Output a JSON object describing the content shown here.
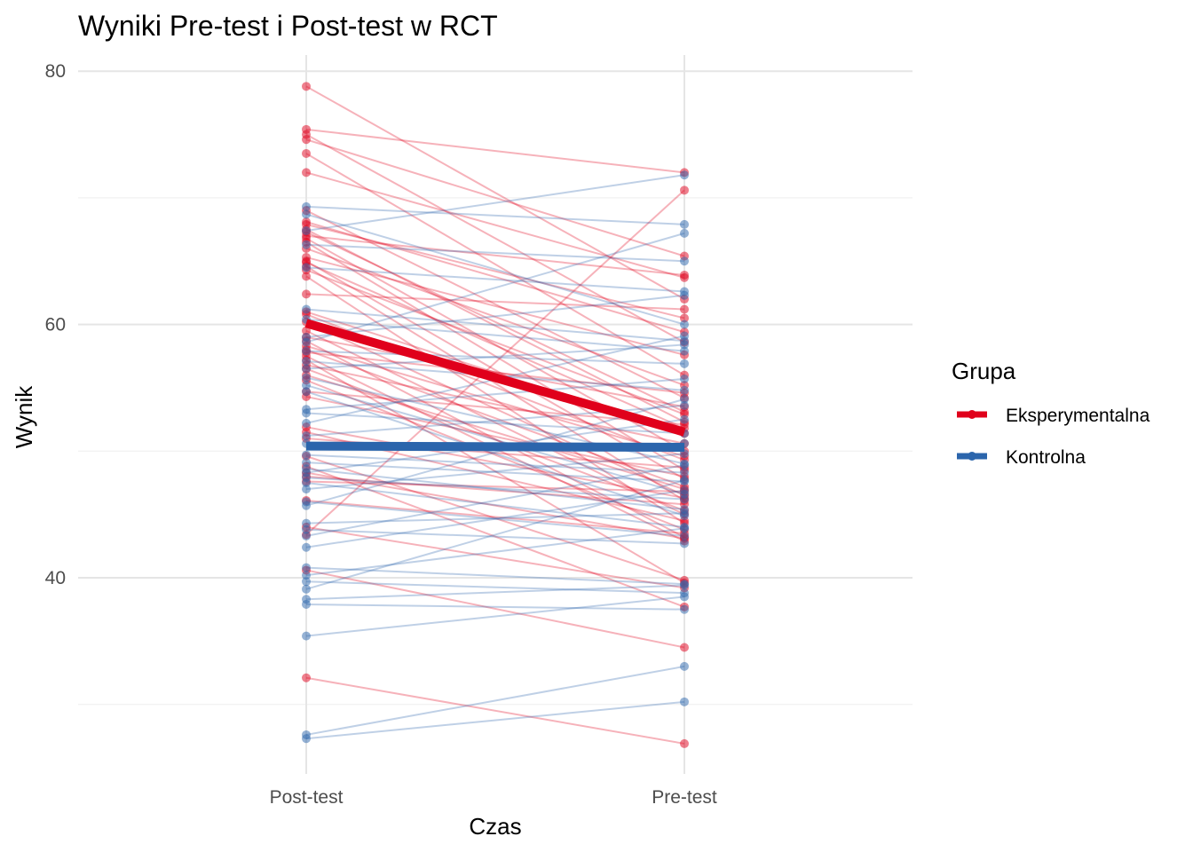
{
  "chart_data": {
    "type": "line",
    "title": "Wyniki Pre-test i Post-test w RCT",
    "xlabel": "Czas",
    "ylabel": "Wynik",
    "categories": [
      "Post-test",
      "Pre-test"
    ],
    "yticks": [
      40,
      60,
      80
    ],
    "ylim": [
      24.5,
      81.5
    ],
    "grid": true,
    "legend": {
      "title": "Grupa",
      "position": "right",
      "entries": [
        {
          "label": "Eksperymentalna",
          "color": "#E0001B"
        },
        {
          "label": "Kontrolna",
          "color": "#2B65AC"
        }
      ]
    },
    "series": [
      {
        "name": "Eksperymentalna",
        "color": "#E0001B",
        "mean": [
          60.1,
          51.5
        ],
        "pairs": [
          [
            78.8,
            62.0
          ],
          [
            75.4,
            72.0
          ],
          [
            75.0,
            58.6
          ],
          [
            74.6,
            65.4
          ],
          [
            73.5,
            56.0
          ],
          [
            72.0,
            63.7
          ],
          [
            69.0,
            54.2
          ],
          [
            68.1,
            59.4
          ],
          [
            67.9,
            60.5
          ],
          [
            67.5,
            52.3
          ],
          [
            67.3,
            53.1
          ],
          [
            66.8,
            50.0
          ],
          [
            66.5,
            48.5
          ],
          [
            66.0,
            55.2
          ],
          [
            65.3,
            57.6
          ],
          [
            65.0,
            47.8
          ],
          [
            64.6,
            46.1
          ],
          [
            64.3,
            52.9
          ],
          [
            63.8,
            44.3
          ],
          [
            62.4,
            61.2
          ],
          [
            61.0,
            51.4
          ],
          [
            60.8,
            49.3
          ],
          [
            60.2,
            46.5
          ],
          [
            59.5,
            45.0
          ],
          [
            59.0,
            53.5
          ],
          [
            58.7,
            43.2
          ],
          [
            58.3,
            49.6
          ],
          [
            58.0,
            47.2
          ],
          [
            57.8,
            54.6
          ],
          [
            57.5,
            42.9
          ],
          [
            57.2,
            39.6
          ],
          [
            56.8,
            50.6
          ],
          [
            56.5,
            45.3
          ],
          [
            56.0,
            47.0
          ],
          [
            55.6,
            43.8
          ],
          [
            54.7,
            52.1
          ],
          [
            54.3,
            48.0
          ],
          [
            51.9,
            46.3
          ],
          [
            51.5,
            44.5
          ],
          [
            51.0,
            48.7
          ],
          [
            49.6,
            39.8
          ],
          [
            48.8,
            37.7
          ],
          [
            48.3,
            43.1
          ],
          [
            48.0,
            45.8
          ],
          [
            47.6,
            46.8
          ],
          [
            46.1,
            43.5
          ],
          [
            44.0,
            39.2
          ],
          [
            43.4,
            70.6
          ],
          [
            40.6,
            34.5
          ],
          [
            32.1,
            26.9
          ],
          [
            67.0,
            63.9
          ],
          [
            64.9,
            51.8
          ]
        ]
      },
      {
        "name": "Kontrolna",
        "color": "#2B65AC",
        "mean": [
          50.4,
          50.3
        ],
        "pairs": [
          [
            69.3,
            67.9
          ],
          [
            68.7,
            60.0
          ],
          [
            67.4,
            71.8
          ],
          [
            66.3,
            65.0
          ],
          [
            64.5,
            62.6
          ],
          [
            61.2,
            58.7
          ],
          [
            60.4,
            57.9
          ],
          [
            59.0,
            62.3
          ],
          [
            57.9,
            56.9
          ],
          [
            57.1,
            54.8
          ],
          [
            56.5,
            58.4
          ],
          [
            55.8,
            49.0
          ],
          [
            55.2,
            46.6
          ],
          [
            54.7,
            44.9
          ],
          [
            53.3,
            55.7
          ],
          [
            53.0,
            51.4
          ],
          [
            51.2,
            53.6
          ],
          [
            50.6,
            50.6
          ],
          [
            49.7,
            48.3
          ],
          [
            49.1,
            47.6
          ],
          [
            48.6,
            45.4
          ],
          [
            48.3,
            52.5
          ],
          [
            47.9,
            46.2
          ],
          [
            47.5,
            44.0
          ],
          [
            47.0,
            49.8
          ],
          [
            46.0,
            43.3
          ],
          [
            45.7,
            54.1
          ],
          [
            44.3,
            45.1
          ],
          [
            43.8,
            42.7
          ],
          [
            43.3,
            48.9
          ],
          [
            42.4,
            46.9
          ],
          [
            40.8,
            39.5
          ],
          [
            40.2,
            43.9
          ],
          [
            39.7,
            38.8
          ],
          [
            39.1,
            47.7
          ],
          [
            38.3,
            39.4
          ],
          [
            37.9,
            37.5
          ],
          [
            35.4,
            38.5
          ],
          [
            27.6,
            33.0
          ],
          [
            27.3,
            30.2
          ],
          [
            58.6,
            67.2
          ],
          [
            52.2,
            59.1
          ]
        ]
      }
    ]
  }
}
